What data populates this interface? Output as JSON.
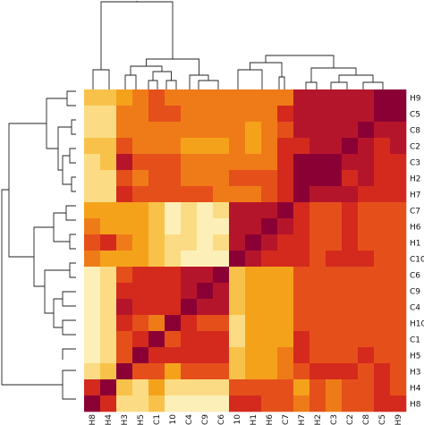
{
  "chart_data": {
    "type": "heatmap",
    "title": "",
    "xlabel": "",
    "ylabel": "",
    "col_labels": [
      "H8",
      "H4",
      "H3",
      "H5",
      "C1",
      "H10",
      "C4",
      "C9",
      "C6",
      "C10",
      "H1",
      "H6",
      "C7",
      "H7",
      "H2",
      "C3",
      "C2",
      "C8",
      "C5",
      "H9"
    ],
    "row_labels": [
      "H9",
      "C5",
      "C8",
      "C2",
      "C3",
      "H2",
      "H7",
      "C7",
      "H6",
      "H1",
      "C10",
      "C6",
      "C9",
      "C4",
      "H10",
      "C1",
      "H5",
      "H3",
      "H4",
      "H8"
    ],
    "value_range": [
      0,
      1
    ],
    "colormap": [
      "#8b0034",
      "#b5152b",
      "#d42a1d",
      "#e5501a",
      "#ef7b18",
      "#f5a21b",
      "#f8c24a",
      "#fbdc84",
      "#fdefb8",
      "#fffbe3"
    ],
    "values": [
      [
        0.3,
        0.3,
        0.5,
        0.6,
        0.7,
        0.6,
        0.6,
        0.6,
        0.55,
        0.55,
        0.55,
        0.6,
        0.6,
        0.88,
        0.9,
        0.85,
        0.85,
        0.85,
        0.95,
        1.0
      ],
      [
        0.25,
        0.25,
        0.55,
        0.6,
        0.65,
        0.65,
        0.6,
        0.58,
        0.55,
        0.6,
        0.55,
        0.6,
        0.75,
        0.88,
        0.85,
        0.85,
        0.85,
        0.88,
        1.0,
        0.95
      ],
      [
        0.2,
        0.25,
        0.55,
        0.6,
        0.6,
        0.6,
        0.58,
        0.55,
        0.55,
        0.55,
        0.5,
        0.6,
        0.7,
        0.85,
        0.85,
        0.85,
        0.88,
        1.0,
        0.9,
        0.85
      ],
      [
        0.3,
        0.35,
        0.65,
        0.6,
        0.6,
        0.6,
        0.45,
        0.45,
        0.45,
        0.55,
        0.5,
        0.6,
        0.75,
        0.8,
        0.85,
        0.85,
        1.0,
        0.9,
        0.8,
        0.85
      ],
      [
        0.25,
        0.3,
        0.85,
        0.65,
        0.7,
        0.62,
        0.58,
        0.58,
        0.55,
        0.55,
        0.55,
        0.6,
        0.75,
        0.95,
        0.95,
        1.0,
        0.85,
        0.85,
        0.8,
        0.8
      ],
      [
        0.2,
        0.25,
        0.7,
        0.6,
        0.65,
        0.65,
        0.6,
        0.6,
        0.55,
        0.65,
        0.65,
        0.7,
        0.75,
        0.95,
        1.0,
        0.95,
        0.8,
        0.85,
        0.8,
        0.8
      ],
      [
        0.2,
        0.25,
        0.75,
        0.7,
        0.7,
        0.7,
        0.65,
        0.65,
        0.55,
        0.55,
        0.6,
        0.7,
        0.75,
        1.0,
        0.9,
        0.9,
        0.85,
        0.8,
        0.8,
        0.8
      ],
      [
        0.45,
        0.5,
        0.4,
        0.5,
        0.3,
        0.15,
        0.25,
        0.15,
        0.2,
        0.85,
        0.85,
        0.85,
        1.0,
        0.75,
        0.7,
        0.7,
        0.75,
        0.7,
        0.7,
        0.7
      ],
      [
        0.55,
        0.5,
        0.45,
        0.5,
        0.35,
        0.15,
        0.2,
        0.15,
        0.15,
        0.85,
        0.9,
        1.0,
        0.9,
        0.75,
        0.7,
        0.7,
        0.75,
        0.7,
        0.7,
        0.7
      ],
      [
        0.65,
        0.75,
        0.55,
        0.45,
        0.3,
        0.2,
        0.2,
        0.15,
        0.2,
        0.85,
        1.0,
        0.9,
        0.8,
        0.75,
        0.7,
        0.7,
        0.75,
        0.7,
        0.7,
        0.7
      ],
      [
        0.55,
        0.5,
        0.45,
        0.45,
        0.3,
        0.2,
        0.15,
        0.15,
        0.15,
        1.0,
        0.85,
        0.8,
        0.75,
        0.75,
        0.7,
        0.75,
        0.75,
        0.75,
        0.7,
        0.7
      ],
      [
        0.15,
        0.2,
        0.7,
        0.8,
        0.75,
        0.8,
        0.9,
        0.9,
        1.0,
        0.3,
        0.45,
        0.45,
        0.5,
        0.7,
        0.7,
        0.7,
        0.7,
        0.7,
        0.7,
        0.7
      ],
      [
        0.12,
        0.2,
        0.75,
        0.8,
        0.75,
        0.8,
        0.9,
        1.0,
        0.9,
        0.3,
        0.45,
        0.5,
        0.5,
        0.7,
        0.7,
        0.7,
        0.7,
        0.7,
        0.7,
        0.7
      ],
      [
        0.15,
        0.2,
        0.85,
        0.8,
        0.8,
        0.75,
        1.0,
        0.9,
        0.9,
        0.3,
        0.5,
        0.5,
        0.5,
        0.7,
        0.7,
        0.7,
        0.7,
        0.7,
        0.7,
        0.7
      ],
      [
        0.15,
        0.2,
        0.75,
        0.7,
        0.6,
        1.0,
        0.75,
        0.7,
        0.7,
        0.2,
        0.45,
        0.5,
        0.5,
        0.7,
        0.7,
        0.7,
        0.7,
        0.7,
        0.7,
        0.7
      ],
      [
        0.15,
        0.2,
        0.7,
        0.8,
        1.0,
        0.65,
        0.8,
        0.75,
        0.75,
        0.25,
        0.45,
        0.45,
        0.5,
        0.75,
        0.7,
        0.7,
        0.7,
        0.7,
        0.7,
        0.7
      ],
      [
        0.15,
        0.2,
        0.7,
        1.0,
        0.8,
        0.75,
        0.8,
        0.8,
        0.8,
        0.3,
        0.4,
        0.45,
        0.55,
        0.8,
        0.7,
        0.7,
        0.7,
        0.75,
        0.7,
        0.7
      ],
      [
        0.25,
        0.3,
        1.0,
        0.7,
        0.7,
        0.5,
        0.7,
        0.7,
        0.7,
        0.35,
        0.5,
        0.5,
        0.55,
        0.7,
        0.75,
        0.8,
        0.8,
        0.7,
        0.75,
        0.7
      ],
      [
        0.8,
        1.0,
        0.3,
        0.25,
        0.5,
        0.2,
        0.2,
        0.2,
        0.2,
        0.7,
        0.65,
        0.7,
        0.65,
        0.5,
        0.65,
        0.6,
        0.65,
        0.7,
        0.75,
        0.7
      ],
      [
        1.0,
        0.8,
        0.25,
        0.25,
        0.35,
        0.15,
        0.15,
        0.15,
        0.15,
        0.75,
        0.75,
        0.7,
        0.65,
        0.55,
        0.7,
        0.6,
        0.65,
        0.7,
        0.8,
        0.75
      ]
    ]
  }
}
